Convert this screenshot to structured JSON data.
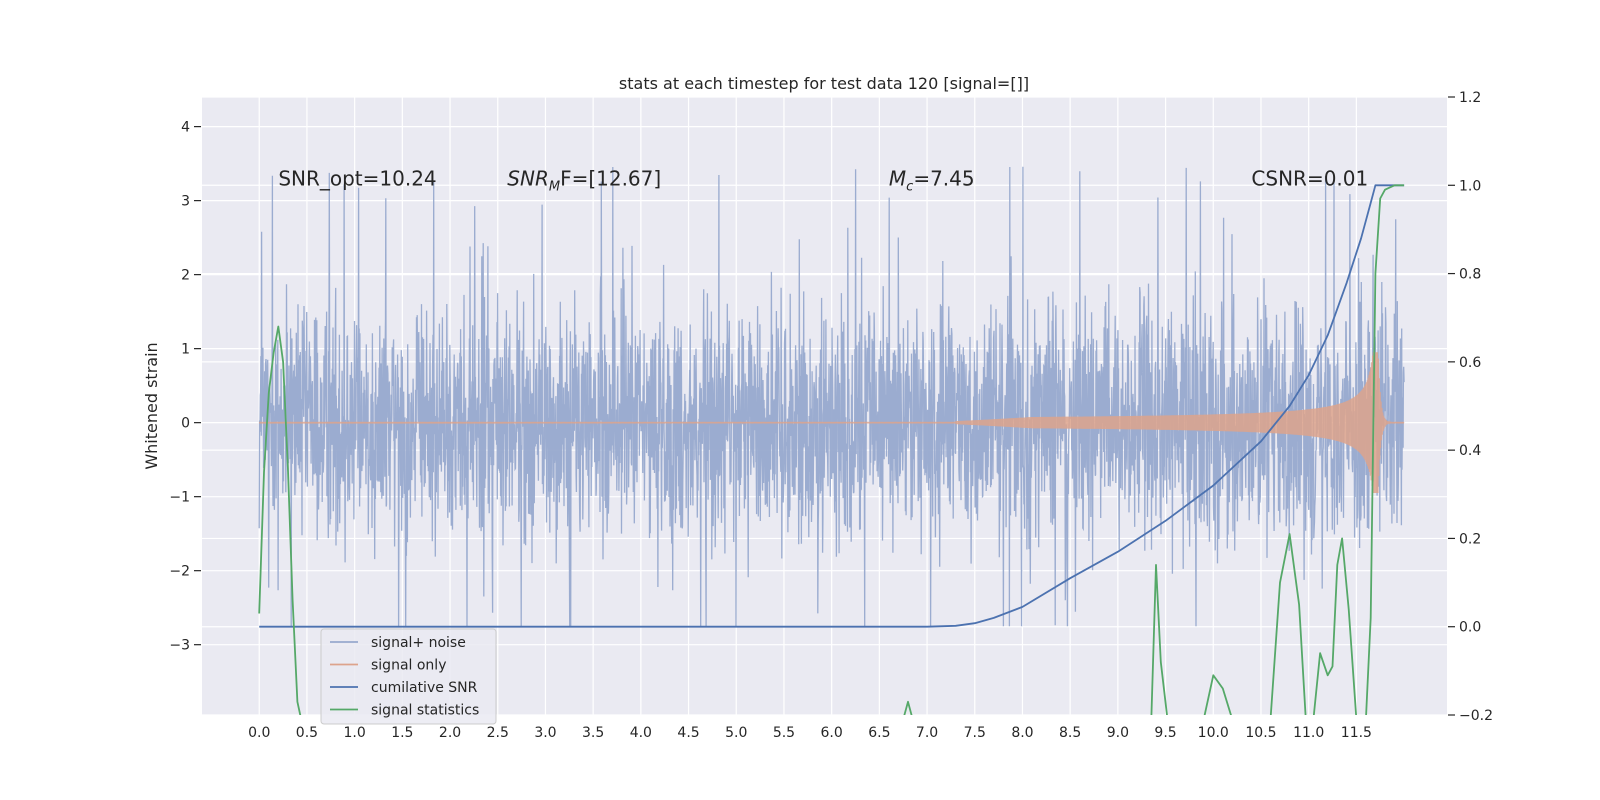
{
  "chart_data": {
    "type": "line",
    "title": "stats at each timestep for test data 120 [signal=[]]",
    "xlabel": "",
    "ylabel": "Whitened strain",
    "y2label": "",
    "xlim": [
      -0.6,
      12.45
    ],
    "ylim": [
      -3.95,
      4.4
    ],
    "y2lim": [
      -0.2,
      1.2
    ],
    "xticks": [
      "0.0",
      "0.5",
      "1.0",
      "1.5",
      "2.0",
      "2.5",
      "3.0",
      "3.5",
      "4.0",
      "4.5",
      "5.0",
      "5.5",
      "6.0",
      "6.5",
      "7.0",
      "7.5",
      "8.0",
      "8.5",
      "9.0",
      "9.5",
      "10.0",
      "10.5",
      "11.0",
      "11.5"
    ],
    "yticks": [
      "4",
      "3",
      "2",
      "1",
      "0",
      "−1",
      "−2",
      "−3"
    ],
    "y2ticks": [
      "1.2",
      "1.0",
      "0.8",
      "0.6",
      "0.4",
      "0.2",
      "0.0",
      "−0.2"
    ],
    "grid": true,
    "legend_position": "lower-left",
    "annotations": [
      {
        "text": "SNR_opt=10.24",
        "x": 0.2,
        "y": 3.3
      },
      {
        "text": "F=[12.67]",
        "x": 2.6,
        "y": 3.3,
        "prefix": "SNR",
        "prefix_sub": "M"
      },
      {
        "text": "=7.45",
        "x": 6.6,
        "y": 3.3,
        "prefix": "M",
        "prefix_sub": "c"
      },
      {
        "text": "CSNR=0.01",
        "x": 10.4,
        "y": 3.3
      }
    ],
    "series": [
      {
        "name": "signal+ noise",
        "color": "#97a9ce",
        "axis": "left",
        "kind": "noise",
        "x_range": [
          0,
          12.0
        ],
        "envelope": [
          -2.75,
          3.6
        ]
      },
      {
        "name": "signal only",
        "color": "#dda38c",
        "axis": "left",
        "kind": "chirp",
        "x_range": [
          0,
          12.0
        ],
        "onset": 7.3,
        "peak_amplitude": 0.95
      },
      {
        "name": "cumilative SNR",
        "color": "#4c72b0",
        "axis": "right",
        "x": [
          0,
          7.0,
          7.3,
          7.5,
          7.7,
          8.0,
          8.5,
          9.0,
          9.5,
          10.0,
          10.5,
          10.8,
          11.0,
          11.2,
          11.4,
          11.55,
          11.65,
          11.7,
          12.0
        ],
        "y": [
          0,
          0,
          0.002,
          0.008,
          0.02,
          0.045,
          0.11,
          0.17,
          0.24,
          0.32,
          0.42,
          0.5,
          0.57,
          0.66,
          0.78,
          0.88,
          0.96,
          1.0,
          1.0
        ]
      },
      {
        "name": "signal statistics",
        "color": "#55a868",
        "axis": "right",
        "x": [
          0,
          0.05,
          0.1,
          0.15,
          0.2,
          0.25,
          0.3,
          0.35,
          0.4,
          0.44,
          0.6,
          6.75,
          6.8,
          6.85,
          9.35,
          9.4,
          9.45,
          9.52,
          9.9,
          10.0,
          10.1,
          10.2,
          10.6,
          10.7,
          10.8,
          10.9,
          10.97,
          11.05,
          11.12,
          11.2,
          11.25,
          11.3,
          11.35,
          11.42,
          11.5,
          11.6,
          11.65,
          11.7,
          11.75,
          11.8,
          11.9,
          12.0
        ],
        "y": [
          0.03,
          0.35,
          0.53,
          0.62,
          0.68,
          0.6,
          0.36,
          0.06,
          -0.17,
          -0.21,
          -0.4,
          -0.21,
          -0.17,
          -0.21,
          -0.21,
          0.14,
          -0.08,
          -0.21,
          -0.21,
          -0.11,
          -0.14,
          -0.21,
          -0.21,
          0.1,
          0.21,
          0.05,
          -0.21,
          -0.21,
          -0.06,
          -0.11,
          -0.09,
          0.14,
          0.2,
          0.04,
          -0.21,
          -0.21,
          0.02,
          0.8,
          0.97,
          0.99,
          1.0,
          1.0
        ]
      }
    ]
  }
}
